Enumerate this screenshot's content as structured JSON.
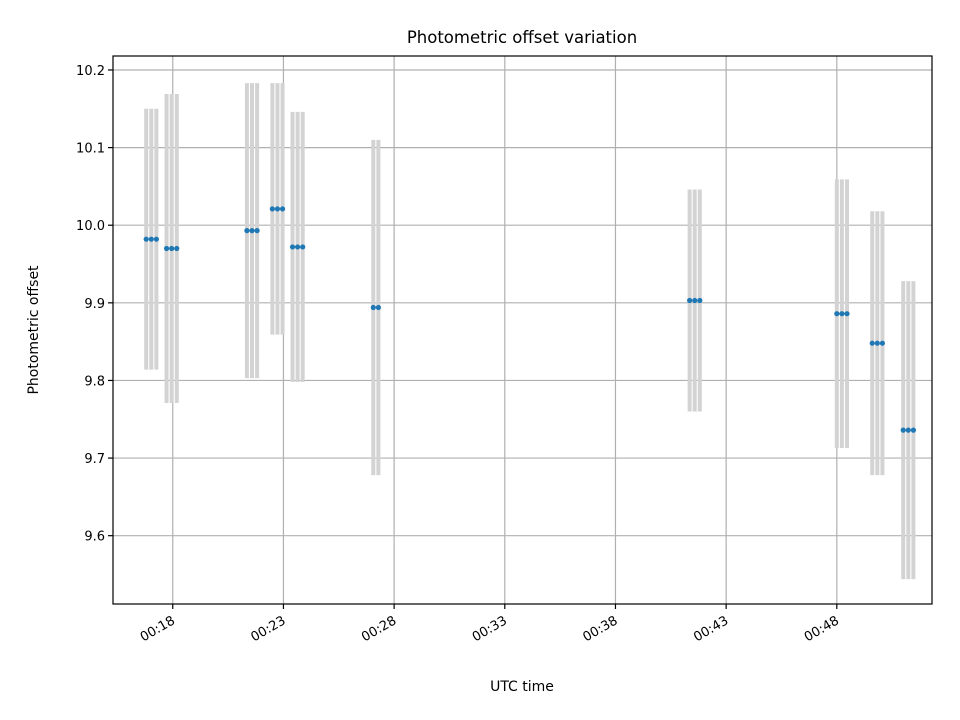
{
  "chart_data": {
    "type": "scatter",
    "title": "Photometric offset variation",
    "xlabel": "UTC time",
    "ylabel": "Photometric offset",
    "x_unit": "minutes after 00:00 UTC",
    "xlim": [
      15.3,
      52.3
    ],
    "ylim": [
      9.512,
      10.218
    ],
    "grid": true,
    "x_ticks": [
      {
        "value": 18,
        "label": "00:18"
      },
      {
        "value": 23,
        "label": "00:23"
      },
      {
        "value": 28,
        "label": "00:28"
      },
      {
        "value": 33,
        "label": "00:33"
      },
      {
        "value": 38,
        "label": "00:38"
      },
      {
        "value": 43,
        "label": "00:43"
      },
      {
        "value": 48,
        "label": "00:48"
      }
    ],
    "y_ticks": [
      {
        "value": 9.6,
        "label": "9.6"
      },
      {
        "value": 9.7,
        "label": "9.7"
      },
      {
        "value": 9.8,
        "label": "9.8"
      },
      {
        "value": 9.9,
        "label": "9.9"
      },
      {
        "value": 10.0,
        "label": "10.0"
      },
      {
        "value": 10.1,
        "label": "10.1"
      },
      {
        "value": 10.2,
        "label": "10.2"
      }
    ],
    "colors": {
      "point": "#1f77b4",
      "errorbar": "#d3d3d3",
      "grid": "#b0b0b0"
    },
    "groups": [
      {
        "x": [
          16.8,
          17.03,
          17.26
        ],
        "y": 9.982,
        "yerr": 0.168
      },
      {
        "x": [
          17.72,
          17.95,
          18.18
        ],
        "y": 9.97,
        "yerr": 0.199
      },
      {
        "x": [
          21.35,
          21.58,
          21.81
        ],
        "y": 9.993,
        "yerr": 0.19
      },
      {
        "x": [
          22.5,
          22.73,
          22.96
        ],
        "y": 10.021,
        "yerr": 0.162
      },
      {
        "x": [
          23.41,
          23.64,
          23.87
        ],
        "y": 9.972,
        "yerr": 0.174
      },
      {
        "x": [
          27.06,
          27.29
        ],
        "y": 9.894,
        "yerr": 0.216
      },
      {
        "x": [
          41.35,
          41.58,
          41.81
        ],
        "y": 9.903,
        "yerr": 0.143
      },
      {
        "x": [
          48.0,
          48.23,
          48.46
        ],
        "y": 9.886,
        "yerr": 0.173
      },
      {
        "x": [
          49.6,
          49.83,
          50.06
        ],
        "y": 9.848,
        "yerr": 0.17
      },
      {
        "x": [
          51.0,
          51.23,
          51.46
        ],
        "y": 9.736,
        "yerr": 0.192
      }
    ]
  }
}
